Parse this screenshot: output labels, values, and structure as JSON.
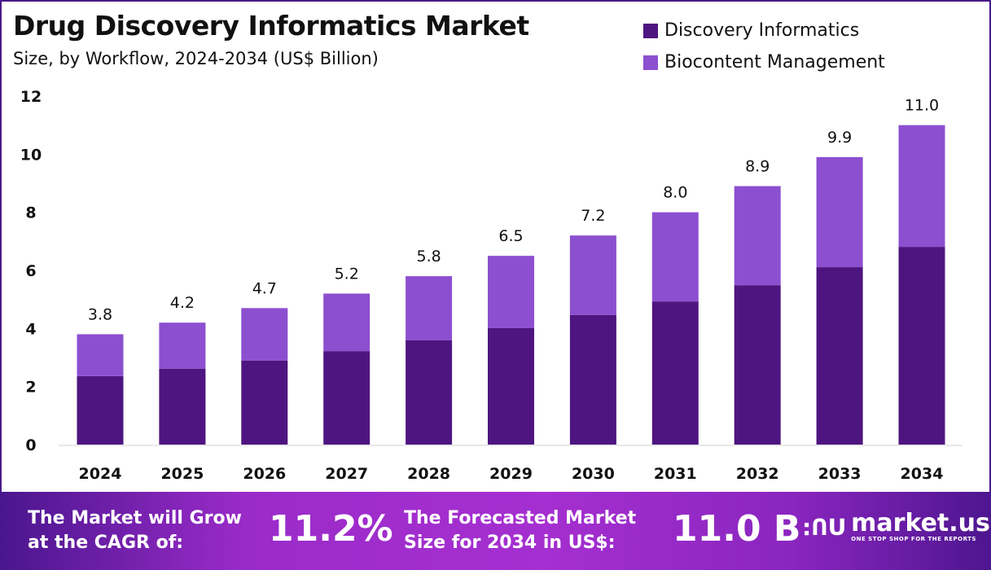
{
  "chart_data": {
    "type": "bar",
    "stacked": true,
    "title": "Drug Discovery Informatics Market",
    "subtitle": "Size, by Workflow, 2024-2034 (US$ Billion)",
    "categories": [
      "2024",
      "2025",
      "2026",
      "2027",
      "2028",
      "2029",
      "2030",
      "2031",
      "2032",
      "2033",
      "2034"
    ],
    "series": [
      {
        "name": "Discovery Informatics",
        "color": "#4e1580",
        "values": [
          2.36,
          2.61,
          2.89,
          3.22,
          3.59,
          4.01,
          4.46,
          4.93,
          5.49,
          6.11,
          6.81
        ]
      },
      {
        "name": "Biocontent Management",
        "color": "#8c4fd0",
        "values": [
          1.44,
          1.59,
          1.81,
          1.98,
          2.21,
          2.49,
          2.74,
          3.07,
          3.41,
          3.79,
          4.19
        ]
      }
    ],
    "totals": [
      "3.8",
      "4.2",
      "4.7",
      "5.2",
      "5.8",
      "6.5",
      "7.2",
      "8.0",
      "8.9",
      "9.9",
      "11.0"
    ],
    "yticks": [
      "0",
      "2",
      "4",
      "6",
      "8",
      "10",
      "12"
    ],
    "ylim": [
      0,
      12
    ],
    "grid": false,
    "legend": "top-right"
  },
  "banner": {
    "cagr_label_1": "The Market will Grow",
    "cagr_label_2": "at the CAGR of:",
    "cagr_value": "11.2%",
    "forecast_label_1": "The Forecasted Market",
    "forecast_label_2": "Size for 2034 in US$:",
    "forecast_value": "11.0 B",
    "logo_name": "market.us",
    "logo_tagline": "ONE STOP SHOP FOR THE REPORTS"
  }
}
